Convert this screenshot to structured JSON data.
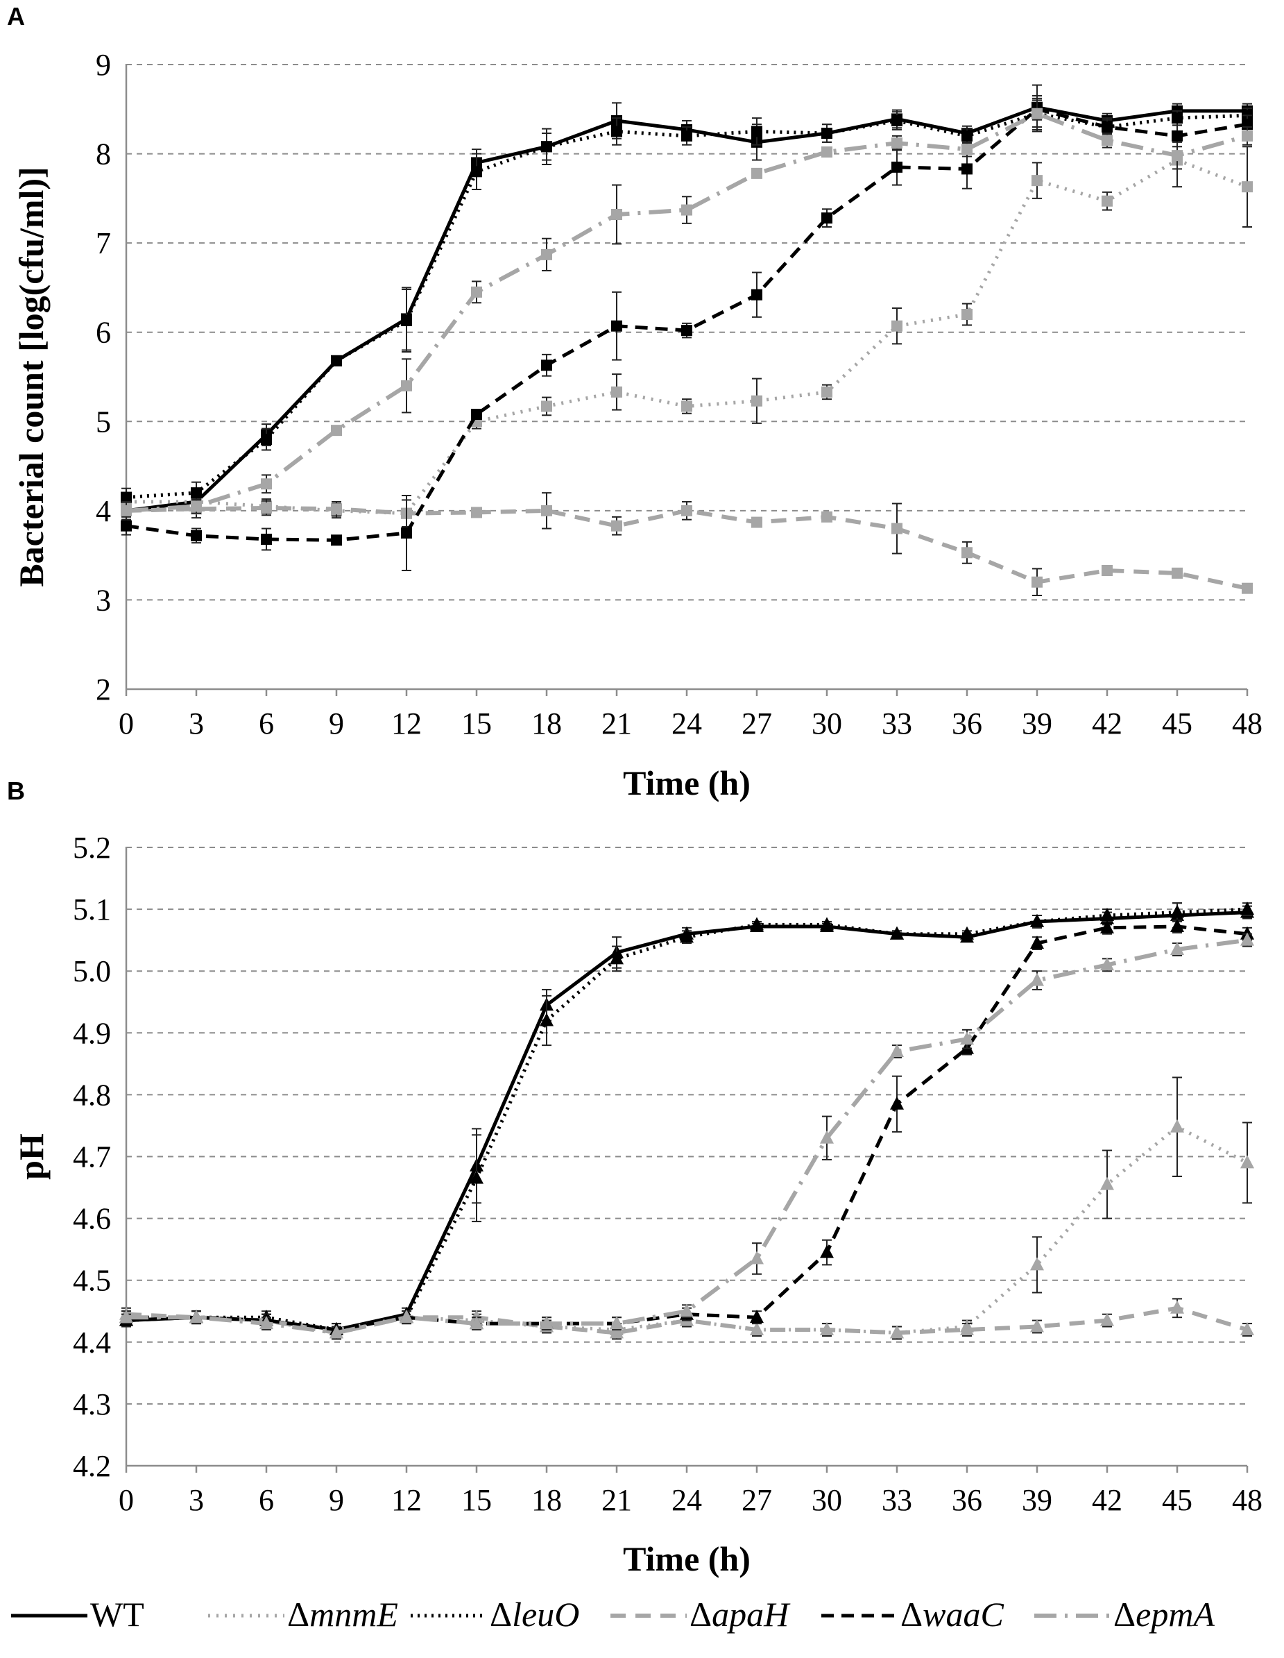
{
  "colors": {
    "black": "#000000",
    "gray": "#a6a6a6",
    "grid": "#8c8c8c"
  },
  "legend": [
    {
      "key": "WT",
      "prefix": "",
      "name": "WT",
      "italic": false
    },
    {
      "key": "mnmE",
      "prefix": "Δ",
      "name": "mnmE",
      "italic": true
    },
    {
      "key": "leuO",
      "prefix": "Δ",
      "name": "leuO",
      "italic": true
    },
    {
      "key": "apaH",
      "prefix": "Δ",
      "name": "apaH",
      "italic": true
    },
    {
      "key": "waaC",
      "prefix": "Δ",
      "name": "waaC",
      "italic": true
    },
    {
      "key": "epmA",
      "prefix": "Δ",
      "name": "epmA",
      "italic": true
    }
  ],
  "chart_data": [
    {
      "panel": "A",
      "type": "line",
      "xlabel": "Time (h)",
      "ylabel": "Bacterial count [log(cfu/ml)]",
      "ylim": [
        2,
        9
      ],
      "yticks": [
        "2",
        "3",
        "4",
        "5",
        "6",
        "7",
        "8",
        "9"
      ],
      "x": [
        0,
        3,
        6,
        9,
        12,
        15,
        18,
        21,
        24,
        27,
        30,
        33,
        36,
        39,
        42,
        45,
        48
      ],
      "xticks": [
        "0",
        "3",
        "6",
        "9",
        "12",
        "15",
        "18",
        "21",
        "24",
        "27",
        "30",
        "33",
        "36",
        "39",
        "42",
        "45",
        "48"
      ],
      "marker": "square",
      "grid": true,
      "series": [
        {
          "name": "WT",
          "values": [
            4.0,
            4.1,
            4.85,
            5.68,
            6.15,
            7.9,
            8.08,
            8.37,
            8.27,
            8.13,
            8.23,
            8.39,
            8.23,
            8.52,
            8.37,
            8.48,
            8.48
          ],
          "errors": [
            0.1,
            0.1,
            0.12,
            0.05,
            0.35,
            0.15,
            0.2,
            0.2,
            0.1,
            0.2,
            0.1,
            0.1,
            0.08,
            0.25,
            0.08,
            0.08,
            0.08
          ]
        },
        {
          "name": "ΔmnmE",
          "values": [
            4.1,
            4.1,
            4.05,
            4.0,
            3.97,
            5.0,
            5.17,
            5.33,
            5.17,
            5.23,
            5.33,
            6.07,
            6.2,
            7.7,
            7.47,
            7.93,
            7.63
          ],
          "errors": [
            0.1,
            0.1,
            0.08,
            0.08,
            0.2,
            0.08,
            0.1,
            0.2,
            0.08,
            0.25,
            0.08,
            0.2,
            0.12,
            0.2,
            0.1,
            0.3,
            0.45
          ]
        },
        {
          "name": "ΔleuO",
          "values": [
            4.15,
            4.2,
            4.8,
            5.68,
            6.13,
            7.8,
            8.08,
            8.25,
            8.2,
            8.25,
            8.23,
            8.37,
            8.2,
            8.45,
            8.3,
            8.4,
            8.43
          ],
          "errors": [
            0.1,
            0.12,
            0.12,
            0.05,
            0.35,
            0.2,
            0.15,
            0.15,
            0.1,
            0.15,
            0.1,
            0.1,
            0.08,
            0.2,
            0.08,
            0.08,
            0.08
          ]
        },
        {
          "name": "ΔapaH",
          "values": [
            4.0,
            4.02,
            4.03,
            4.02,
            3.97,
            3.98,
            4.0,
            3.83,
            4.0,
            3.87,
            3.93,
            3.8,
            3.53,
            3.2,
            3.33,
            3.3,
            3.13
          ],
          "errors": [
            0.1,
            0.1,
            0.08,
            0.08,
            0.15,
            0.05,
            0.2,
            0.1,
            0.1,
            0.05,
            0.05,
            0.28,
            0.12,
            0.15,
            0.05,
            0.05,
            0.05
          ]
        },
        {
          "name": "ΔwaaC",
          "values": [
            3.83,
            3.72,
            3.68,
            3.67,
            3.75,
            5.08,
            5.63,
            6.07,
            6.02,
            6.42,
            7.28,
            7.85,
            7.83,
            8.5,
            8.3,
            8.2,
            8.33
          ],
          "errors": [
            0.1,
            0.08,
            0.12,
            0.05,
            0.42,
            0.05,
            0.12,
            0.38,
            0.08,
            0.25,
            0.1,
            0.2,
            0.22,
            0.12,
            0.1,
            0.12,
            0.1
          ]
        },
        {
          "name": "ΔepmA",
          "values": [
            4.0,
            4.05,
            4.3,
            4.9,
            5.4,
            6.45,
            6.87,
            7.32,
            7.37,
            7.78,
            8.02,
            8.12,
            8.05,
            8.45,
            8.15,
            7.98,
            8.2
          ],
          "errors": [
            0.1,
            0.08,
            0.1,
            0.05,
            0.3,
            0.12,
            0.18,
            0.33,
            0.15,
            0.05,
            0.05,
            0.08,
            0.08,
            0.15,
            0.08,
            0.15,
            0.1
          ]
        }
      ]
    },
    {
      "panel": "B",
      "type": "line",
      "xlabel": "Time (h)",
      "ylabel": "pH",
      "ylim": [
        4.2,
        5.2
      ],
      "yticks": [
        "4.2",
        "4.3",
        "4.4",
        "4.5",
        "4.6",
        "4.7",
        "4.8",
        "4.9",
        "5.0",
        "5.1",
        "5.2"
      ],
      "x": [
        0,
        3,
        6,
        9,
        12,
        15,
        18,
        21,
        24,
        27,
        30,
        33,
        36,
        39,
        42,
        45,
        48
      ],
      "xticks": [
        "0",
        "3",
        "6",
        "9",
        "12",
        "15",
        "18",
        "21",
        "24",
        "27",
        "30",
        "33",
        "36",
        "39",
        "42",
        "45",
        "48"
      ],
      "marker": "triangle",
      "grid": true,
      "series": [
        {
          "name": "WT",
          "values": [
            4.435,
            4.44,
            4.435,
            4.42,
            4.445,
            4.685,
            4.945,
            5.03,
            5.06,
            5.072,
            5.072,
            5.06,
            5.055,
            5.08,
            5.085,
            5.09,
            5.095
          ],
          "errors": [
            0.01,
            0.01,
            0.01,
            0.01,
            0.01,
            0.06,
            0.025,
            0.025,
            0.01,
            0.005,
            0.005,
            0.005,
            0.005,
            0.01,
            0.01,
            0.02,
            0.01
          ]
        },
        {
          "name": "ΔmnmE",
          "values": [
            4.44,
            4.44,
            4.435,
            4.42,
            4.44,
            4.435,
            4.425,
            4.42,
            4.435,
            4.42,
            4.42,
            4.415,
            4.425,
            4.525,
            4.655,
            4.748,
            4.69
          ],
          "errors": [
            0.01,
            0.01,
            0.01,
            0.01,
            0.01,
            0.01,
            0.01,
            0.01,
            0.01,
            0.01,
            0.01,
            0.01,
            0.01,
            0.045,
            0.055,
            0.08,
            0.065
          ]
        },
        {
          "name": "ΔleuO",
          "values": [
            4.44,
            4.44,
            4.44,
            4.42,
            4.44,
            4.665,
            4.92,
            5.02,
            5.055,
            5.075,
            5.075,
            5.06,
            5.06,
            5.08,
            5.09,
            5.095,
            5.1
          ],
          "errors": [
            0.01,
            0.01,
            0.01,
            0.01,
            0.01,
            0.07,
            0.04,
            0.02,
            0.01,
            0.005,
            0.005,
            0.005,
            0.005,
            0.01,
            0.01,
            0.015,
            0.01
          ]
        },
        {
          "name": "ΔapaH",
          "values": [
            4.445,
            4.44,
            4.435,
            4.415,
            4.44,
            4.44,
            4.425,
            4.415,
            4.435,
            4.42,
            4.42,
            4.415,
            4.42,
            4.425,
            4.435,
            4.455,
            4.42
          ],
          "errors": [
            0.01,
            0.01,
            0.01,
            0.01,
            0.01,
            0.01,
            0.01,
            0.01,
            0.01,
            0.01,
            0.01,
            0.01,
            0.01,
            0.01,
            0.01,
            0.015,
            0.01
          ]
        },
        {
          "name": "ΔwaaC",
          "values": [
            4.435,
            4.44,
            4.435,
            4.42,
            4.44,
            4.43,
            4.43,
            4.43,
            4.445,
            4.44,
            4.545,
            4.785,
            4.875,
            5.045,
            5.07,
            5.072,
            5.06
          ],
          "errors": [
            0.01,
            0.01,
            0.01,
            0.01,
            0.01,
            0.01,
            0.01,
            0.01,
            0.01,
            0.01,
            0.02,
            0.045,
            0.01,
            0.01,
            0.01,
            0.01,
            0.01
          ]
        },
        {
          "name": "ΔepmA",
          "values": [
            4.44,
            4.44,
            4.43,
            4.415,
            4.44,
            4.43,
            4.43,
            4.43,
            4.45,
            4.535,
            4.73,
            4.87,
            4.89,
            4.985,
            5.01,
            5.035,
            5.05
          ],
          "errors": [
            0.01,
            0.01,
            0.01,
            0.01,
            0.01,
            0.01,
            0.01,
            0.01,
            0.01,
            0.025,
            0.035,
            0.01,
            0.015,
            0.015,
            0.01,
            0.01,
            0.01
          ]
        }
      ]
    }
  ]
}
